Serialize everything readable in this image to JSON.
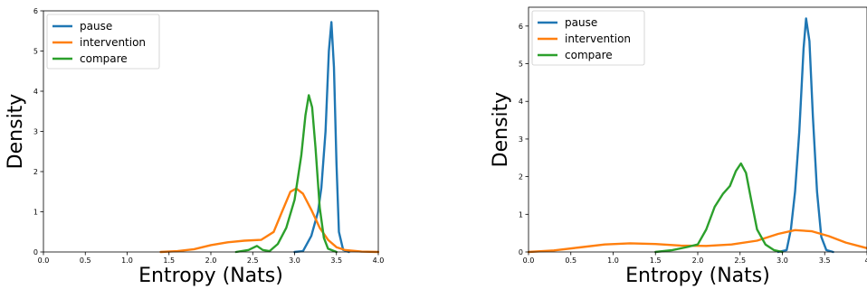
{
  "chart_data": [
    {
      "type": "line",
      "title": "",
      "xlabel": "Entropy (Nats)",
      "ylabel": "Density",
      "xlim": [
        0.0,
        4.0
      ],
      "ylim": [
        0,
        6
      ],
      "xticks": [
        "0.0",
        "0.5",
        "1.0",
        "1.5",
        "2.0",
        "2.5",
        "3.0",
        "3.5",
        "4.0"
      ],
      "yticks": [
        "0",
        "1",
        "2",
        "3",
        "4",
        "5",
        "6"
      ],
      "legend_position": "top-left",
      "grid": false,
      "series": [
        {
          "name": "pause",
          "color": "#1f77b4",
          "points": [
            [
              3.0,
              0
            ],
            [
              3.1,
              0.02
            ],
            [
              3.2,
              0.4
            ],
            [
              3.28,
              1.0
            ],
            [
              3.32,
              1.6
            ],
            [
              3.37,
              3.0
            ],
            [
              3.41,
              5.0
            ],
            [
              3.44,
              5.72
            ],
            [
              3.47,
              4.6
            ],
            [
              3.5,
              2.2
            ],
            [
              3.53,
              0.5
            ],
            [
              3.58,
              0.05
            ],
            [
              3.65,
              0
            ]
          ]
        },
        {
          "name": "intervention",
          "color": "#ff7f0e",
          "points": [
            [
              1.4,
              0
            ],
            [
              1.6,
              0.02
            ],
            [
              1.8,
              0.07
            ],
            [
              2.0,
              0.17
            ],
            [
              2.2,
              0.24
            ],
            [
              2.4,
              0.28
            ],
            [
              2.6,
              0.3
            ],
            [
              2.75,
              0.5
            ],
            [
              2.85,
              1.0
            ],
            [
              2.95,
              1.5
            ],
            [
              3.02,
              1.58
            ],
            [
              3.1,
              1.45
            ],
            [
              3.2,
              1.05
            ],
            [
              3.3,
              0.6
            ],
            [
              3.4,
              0.3
            ],
            [
              3.5,
              0.12
            ],
            [
              3.6,
              0.05
            ],
            [
              3.8,
              0.01
            ],
            [
              4.0,
              0
            ]
          ]
        },
        {
          "name": "compare",
          "color": "#2ca02c",
          "points": [
            [
              2.3,
              0
            ],
            [
              2.45,
              0.05
            ],
            [
              2.55,
              0.15
            ],
            [
              2.62,
              0.05
            ],
            [
              2.7,
              0.02
            ],
            [
              2.8,
              0.2
            ],
            [
              2.9,
              0.6
            ],
            [
              3.0,
              1.3
            ],
            [
              3.08,
              2.4
            ],
            [
              3.13,
              3.4
            ],
            [
              3.17,
              3.9
            ],
            [
              3.21,
              3.6
            ],
            [
              3.25,
              2.6
            ],
            [
              3.3,
              1.1
            ],
            [
              3.35,
              0.35
            ],
            [
              3.4,
              0.08
            ],
            [
              3.5,
              0
            ]
          ]
        }
      ]
    },
    {
      "type": "line",
      "title": "",
      "xlabel": "Entropy (Nats)",
      "ylabel": "Density",
      "xlim": [
        0.0,
        4.0
      ],
      "ylim": [
        0,
        6.5
      ],
      "xticks": [
        "0.0",
        "0.5",
        "1.0",
        "1.5",
        "2.0",
        "2.5",
        "3.0",
        "3.5",
        "4"
      ],
      "yticks": [
        "0",
        "1",
        "2",
        "3",
        "4",
        "5",
        "6"
      ],
      "legend_position": "top-left",
      "grid": false,
      "series": [
        {
          "name": "pause",
          "color": "#1f77b4",
          "points": [
            [
              2.95,
              0
            ],
            [
              3.05,
              0.05
            ],
            [
              3.1,
              0.6
            ],
            [
              3.15,
              1.6
            ],
            [
              3.2,
              3.2
            ],
            [
              3.25,
              5.4
            ],
            [
              3.28,
              6.2
            ],
            [
              3.32,
              5.6
            ],
            [
              3.36,
              3.6
            ],
            [
              3.41,
              1.6
            ],
            [
              3.46,
              0.4
            ],
            [
              3.52,
              0.05
            ],
            [
              3.6,
              0
            ]
          ]
        },
        {
          "name": "intervention",
          "color": "#ff7f0e",
          "points": [
            [
              0.0,
              0
            ],
            [
              0.3,
              0.04
            ],
            [
              0.6,
              0.12
            ],
            [
              0.9,
              0.2
            ],
            [
              1.2,
              0.23
            ],
            [
              1.5,
              0.21
            ],
            [
              1.8,
              0.17
            ],
            [
              2.1,
              0.16
            ],
            [
              2.4,
              0.2
            ],
            [
              2.7,
              0.3
            ],
            [
              2.95,
              0.48
            ],
            [
              3.15,
              0.58
            ],
            [
              3.35,
              0.55
            ],
            [
              3.55,
              0.42
            ],
            [
              3.75,
              0.25
            ],
            [
              4.0,
              0.1
            ]
          ]
        },
        {
          "name": "compare",
          "color": "#2ca02c",
          "points": [
            [
              1.5,
              0
            ],
            [
              1.7,
              0.05
            ],
            [
              1.85,
              0.12
            ],
            [
              2.0,
              0.2
            ],
            [
              2.1,
              0.6
            ],
            [
              2.2,
              1.2
            ],
            [
              2.3,
              1.55
            ],
            [
              2.38,
              1.75
            ],
            [
              2.45,
              2.15
            ],
            [
              2.51,
              2.35
            ],
            [
              2.57,
              2.1
            ],
            [
              2.63,
              1.4
            ],
            [
              2.7,
              0.6
            ],
            [
              2.8,
              0.2
            ],
            [
              2.9,
              0.05
            ],
            [
              3.0,
              0
            ]
          ]
        }
      ]
    }
  ]
}
